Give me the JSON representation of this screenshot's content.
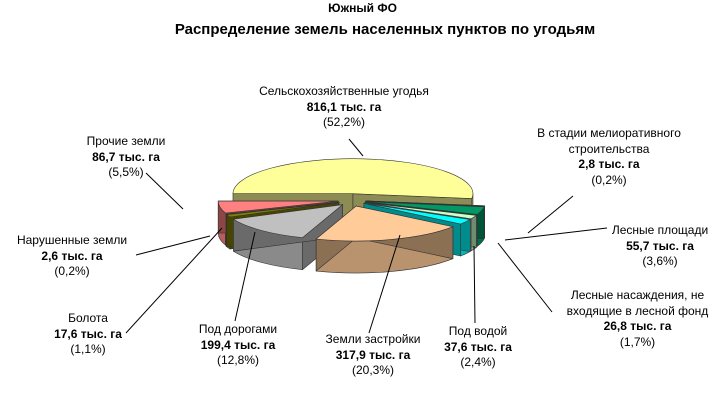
{
  "header": {
    "district": "Южный ФО",
    "title": "Распределение земель населенных пунктов по угодьям"
  },
  "colors": {
    "agricultural": "#ffff99",
    "construction": "#ffcc99",
    "water": "#00ffff",
    "plantations": "#ccffcc",
    "forest": "#009966",
    "reclamation": "#993366",
    "other": "#ff8080",
    "disturbed": "#ff0000",
    "swamps": "#808000",
    "roads": "#c0c0c0"
  },
  "chart_data": {
    "type": "pie",
    "title": "Распределение земель населенных пунктов по угодьям",
    "subtitle": "Южный ФО",
    "unit": "тыс. га",
    "slices": [
      {
        "key": "agricultural",
        "name": "Сельскохозяйственные угодья",
        "value": 816.1,
        "value_text": "816,1 тыс. га",
        "percent": 52.2,
        "percent_text": "(52,2%)"
      },
      {
        "key": "reclamation",
        "name": "В стадии мелиоративного строительства",
        "value": 2.8,
        "value_text": "2,8 тыс. га",
        "percent": 0.2,
        "percent_text": "(0,2%)"
      },
      {
        "key": "forest",
        "name": "Лесные площади",
        "value": 55.7,
        "value_text": "55,7 тыс. га",
        "percent": 3.6,
        "percent_text": "(3,6%)"
      },
      {
        "key": "plantations",
        "name": "Лесные насаждения, не входящие в лесной фонд",
        "value": 26.8,
        "value_text": "26,8 тыс. га",
        "percent": 1.7,
        "percent_text": "(1,7%)"
      },
      {
        "key": "water",
        "name": "Под водой",
        "value": 37.6,
        "value_text": "37,6 тыс. га",
        "percent": 2.4,
        "percent_text": "(2,4%)"
      },
      {
        "key": "construction",
        "name": "Земли застройки",
        "value": 317.9,
        "value_text": "317,9 тыс. га",
        "percent": 20.3,
        "percent_text": "(20,3%)"
      },
      {
        "key": "roads",
        "name": "Под дорогами",
        "value": 199.4,
        "value_text": "199,4 тыс. га",
        "percent": 12.8,
        "percent_text": "(12,8%)"
      },
      {
        "key": "swamps",
        "name": "Болота",
        "value": 17.6,
        "value_text": "17,6 тыс. га",
        "percent": 1.1,
        "percent_text": "(1,1%)"
      },
      {
        "key": "disturbed",
        "name": "Нарушенные земли",
        "value": 2.6,
        "value_text": "2,6 тыс. га",
        "percent": 0.2,
        "percent_text": "(0,2%)"
      },
      {
        "key": "other",
        "name": "Прочие земли",
        "value": 86.7,
        "value_text": "86,7 тыс. га",
        "percent": 5.5,
        "percent_text": "(5,5%)"
      }
    ]
  },
  "labels": {
    "agricultural": {
      "l1": "Сельскохозяйственные угодья",
      "l2": "816,1 тыс. га",
      "l3": "(52,2%)"
    },
    "reclamation": {
      "l1": "В стадии мелиоративного",
      "l1b": "строительства",
      "l2": "2,8 тыс. га",
      "l3": "(0,2%)"
    },
    "forest": {
      "l1": "Лесные площади",
      "l2": "55,7 тыс. га",
      "l3": "(3,6%)"
    },
    "plantations": {
      "l1": "Лесные насаждения, не",
      "l1b": "входящие в лесной фонд",
      "l2": "26,8 тыс. га",
      "l3": "(1,7%)"
    },
    "water": {
      "l1": "Под водой",
      "l2": "37,6 тыс. га",
      "l3": "(2,4%)"
    },
    "construction": {
      "l1": "Земли застройки",
      "l2": "317,9 тыс. га",
      "l3": "(20,3%)"
    },
    "roads": {
      "l1": "Под дорогами",
      "l2": "199,4 тыс. га",
      "l3": "(12,8%)"
    },
    "swamps": {
      "l1": "Болота",
      "l2": "17,6 тыс. га",
      "l3": "(1,1%)"
    },
    "disturbed": {
      "l1": "Нарушенные земли",
      "l2": "2,6 тыс. га",
      "l3": "(0,2%)"
    },
    "other": {
      "l1": "Прочие земли",
      "l2": "86,7 тыс. га",
      "l3": "(5,5%)"
    }
  }
}
